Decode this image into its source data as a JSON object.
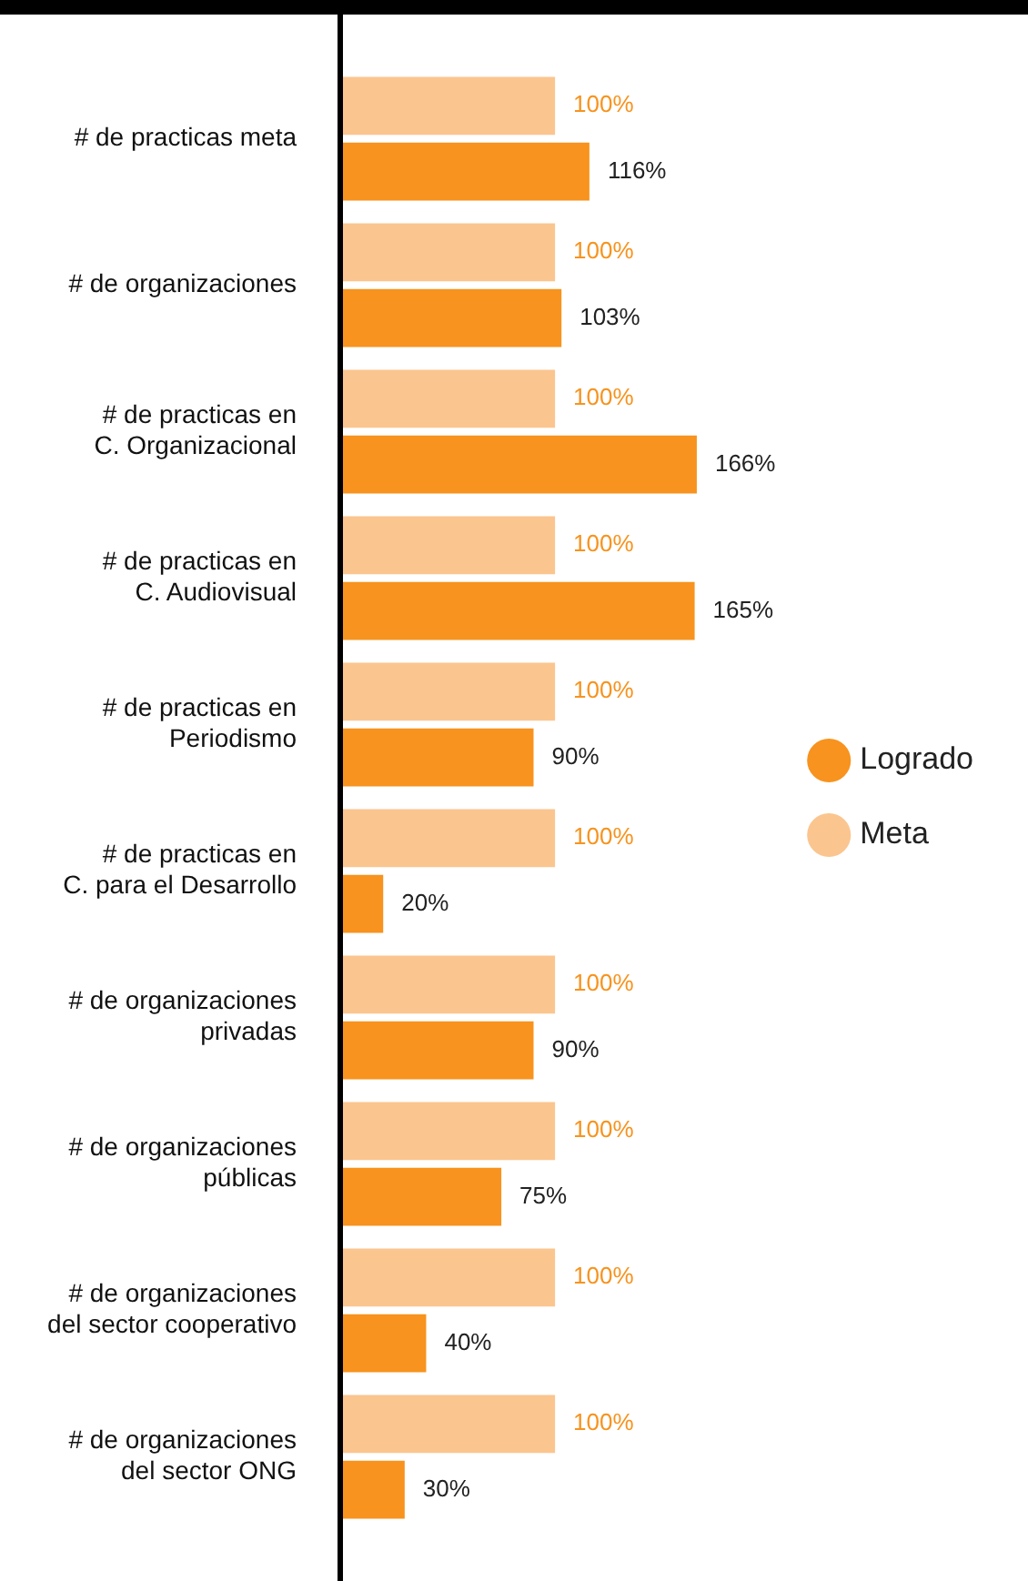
{
  "chart_data": {
    "type": "bar",
    "orientation": "horizontal",
    "legend": "right",
    "tick_labels": "y",
    "grid": false,
    "categories": [
      "# de practicas meta",
      "# de organizaciones",
      "# de practicas en\nC. Organizacional",
      "# de practicas en\nC. Audiovisual",
      "# de practicas en\nPeriodismo",
      "# de practicas en\nC. para el Desarrollo",
      "# de organizaciones\nprivadas",
      "# de organizaciones\npúblicas",
      "# de organizaciones\ndel sector cooperativo",
      "# de organizaciones\ndel sector ONG"
    ],
    "series": [
      {
        "name": "Meta",
        "color": "#fbc58f",
        "values": [
          100,
          100,
          100,
          100,
          100,
          100,
          100,
          100,
          100,
          100
        ],
        "value_labels": [
          "100%",
          "100%",
          "100%",
          "100%",
          "100%",
          "100%",
          "100%",
          "100%",
          "100%",
          "100%"
        ]
      },
      {
        "name": "Logrado",
        "color": "#f7931e",
        "values": [
          116,
          103,
          166,
          165,
          90,
          20,
          90,
          75,
          40,
          30
        ],
        "value_labels": [
          "116%",
          "103%",
          "166%",
          "165%",
          "90%",
          "20%",
          "90%",
          "75%",
          "40%",
          "30%"
        ]
      }
    ]
  }
}
